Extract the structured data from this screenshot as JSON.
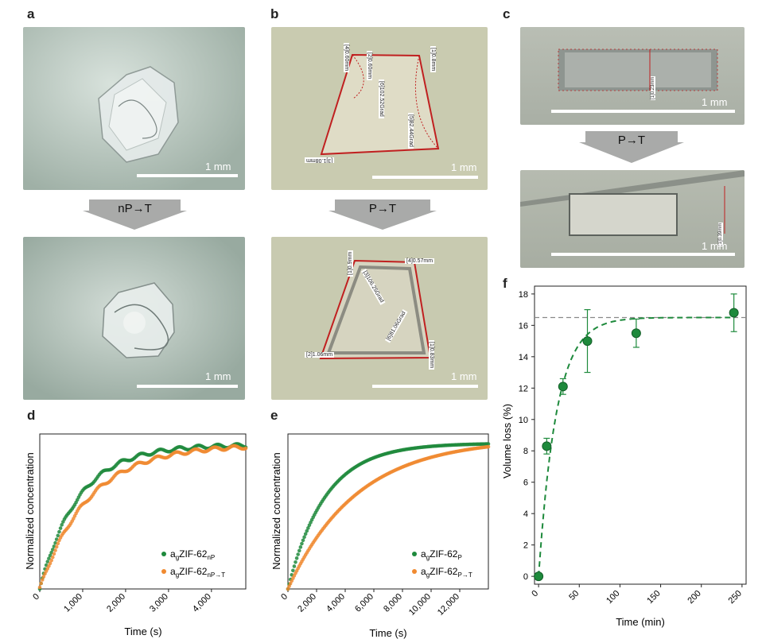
{
  "panels": {
    "a": {
      "letter": "a",
      "scale": "1 mm",
      "arrow": "nP→T"
    },
    "b": {
      "letter": "b",
      "scale": "1 mm",
      "arrow": "P→T",
      "top_measure": [
        "[4]0.60mm",
        "[2]0.60mm",
        "[1]0.8mm",
        "[6]102.52Grad",
        "[5]82.44Grad",
        "[3]1.08mm"
      ],
      "bottom_measure": [
        "[1]0.9mm",
        "[4]0.57mm",
        "[3]106.25Grad",
        "[6]81.06Grad",
        "[2]1.06mm",
        "[1]0.83mm"
      ]
    },
    "c": {
      "letter": "c",
      "scale_top": "1 mm",
      "scale_bottom": "1 mm",
      "arrow": "P→T",
      "top_measure": "[1]0.23mm",
      "bottom_measure": "[1]0.39mm"
    },
    "d": {
      "letter": "d"
    },
    "e": {
      "letter": "e"
    },
    "f": {
      "letter": "f"
    }
  },
  "chart_data": [
    {
      "panel": "d",
      "type": "scatter",
      "xlabel": "Time (s)",
      "ylabel": "Normalized concentration",
      "xlim": [
        0,
        4800
      ],
      "ylim": [
        0,
        1
      ],
      "xticks": [
        "0",
        "1,000",
        "2,000",
        "3,000",
        "4,000"
      ],
      "legend_position": "bottom-right",
      "series": [
        {
          "name": "agZIF-62nP",
          "color": "#1e8a3c",
          "tau": 900,
          "plateau": 0.93
        },
        {
          "name": "agZIF-62nP→T",
          "color": "#f08a30",
          "tau": 1150,
          "plateau": 0.93
        }
      ]
    },
    {
      "panel": "e",
      "type": "scatter",
      "xlabel": "Time (s)",
      "ylabel": "Normalized concentration",
      "xlim": [
        0,
        14000
      ],
      "ylim": [
        0,
        1
      ],
      "xticks": [
        "0",
        "2,000",
        "4,000",
        "6,000",
        "8,000",
        "10,000",
        "12,000"
      ],
      "legend_position": "bottom-right",
      "series": [
        {
          "name": "agZIF-62P",
          "color": "#1e8a3c",
          "tau": 2600,
          "plateau": 0.94
        },
        {
          "name": "agZIF-62P→T",
          "color": "#f08a30",
          "tau": 4800,
          "plateau": 0.97
        }
      ]
    },
    {
      "panel": "f",
      "type": "scatter",
      "xlabel": "Time (min)",
      "ylabel": "Volume loss (%)",
      "xlim": [
        -5,
        255
      ],
      "ylim": [
        -0.5,
        18.5
      ],
      "xticks": [
        0,
        50,
        100,
        150,
        200,
        250
      ],
      "yticks": [
        0,
        2,
        4,
        6,
        8,
        10,
        12,
        14,
        16,
        18
      ],
      "asymptote": 16.5,
      "fit_tau": 22,
      "points": [
        {
          "x": 0,
          "y": 0,
          "err": 0
        },
        {
          "x": 10,
          "y": 8.3,
          "err": 0.5
        },
        {
          "x": 30,
          "y": 12.1,
          "err": 0.5
        },
        {
          "x": 60,
          "y": 15.0,
          "err": 2.0
        },
        {
          "x": 120,
          "y": 15.5,
          "err": 0.9
        },
        {
          "x": 240,
          "y": 16.8,
          "err": 1.2
        }
      ],
      "color": "#1e8a3c"
    }
  ]
}
